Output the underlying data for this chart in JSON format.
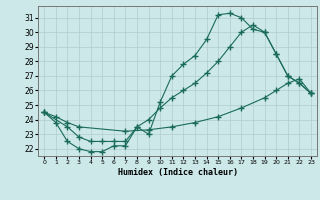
{
  "title": "",
  "xlabel": "Humidex (Indice chaleur)",
  "xlim": [
    -0.5,
    23.5
  ],
  "ylim": [
    21.5,
    31.8
  ],
  "xticks": [
    0,
    1,
    2,
    3,
    4,
    5,
    6,
    7,
    8,
    9,
    10,
    11,
    12,
    13,
    14,
    15,
    16,
    17,
    18,
    19,
    20,
    21,
    22,
    23
  ],
  "yticks": [
    22,
    23,
    24,
    25,
    26,
    27,
    28,
    29,
    30,
    31
  ],
  "bg_color": "#cce8e8",
  "line_color": "#1a6b5a",
  "grid_color": "#b0cccc",
  "line1_x": [
    0,
    1,
    2,
    3,
    4,
    5,
    6,
    7,
    8,
    9,
    10,
    11,
    12,
    13,
    14,
    15,
    16,
    17,
    18,
    19,
    20,
    21,
    22,
    23
  ],
  "line1_y": [
    24.5,
    23.8,
    22.5,
    22.0,
    21.8,
    21.8,
    22.2,
    22.2,
    23.5,
    23.0,
    25.2,
    27.0,
    27.8,
    28.4,
    29.5,
    31.2,
    31.3,
    31.0,
    30.2,
    30.0,
    28.5,
    27.0,
    26.5,
    25.8
  ],
  "line2_x": [
    0,
    2,
    3,
    4,
    5,
    6,
    7,
    8,
    9,
    10,
    11,
    12,
    13,
    14,
    15,
    16,
    17,
    18,
    19,
    20,
    21,
    22,
    23
  ],
  "line2_y": [
    24.5,
    23.5,
    22.8,
    22.5,
    22.5,
    22.5,
    22.5,
    23.5,
    24.0,
    24.8,
    25.5,
    26.0,
    26.5,
    27.2,
    28.0,
    29.0,
    30.0,
    30.5,
    30.0,
    28.5,
    27.0,
    26.5,
    25.8
  ],
  "line3_x": [
    0,
    1,
    2,
    3,
    7,
    9,
    11,
    13,
    15,
    17,
    19,
    20,
    21,
    22,
    23
  ],
  "line3_y": [
    24.5,
    24.2,
    23.8,
    23.5,
    23.2,
    23.3,
    23.5,
    23.8,
    24.2,
    24.8,
    25.5,
    26.0,
    26.5,
    26.8,
    25.8
  ]
}
